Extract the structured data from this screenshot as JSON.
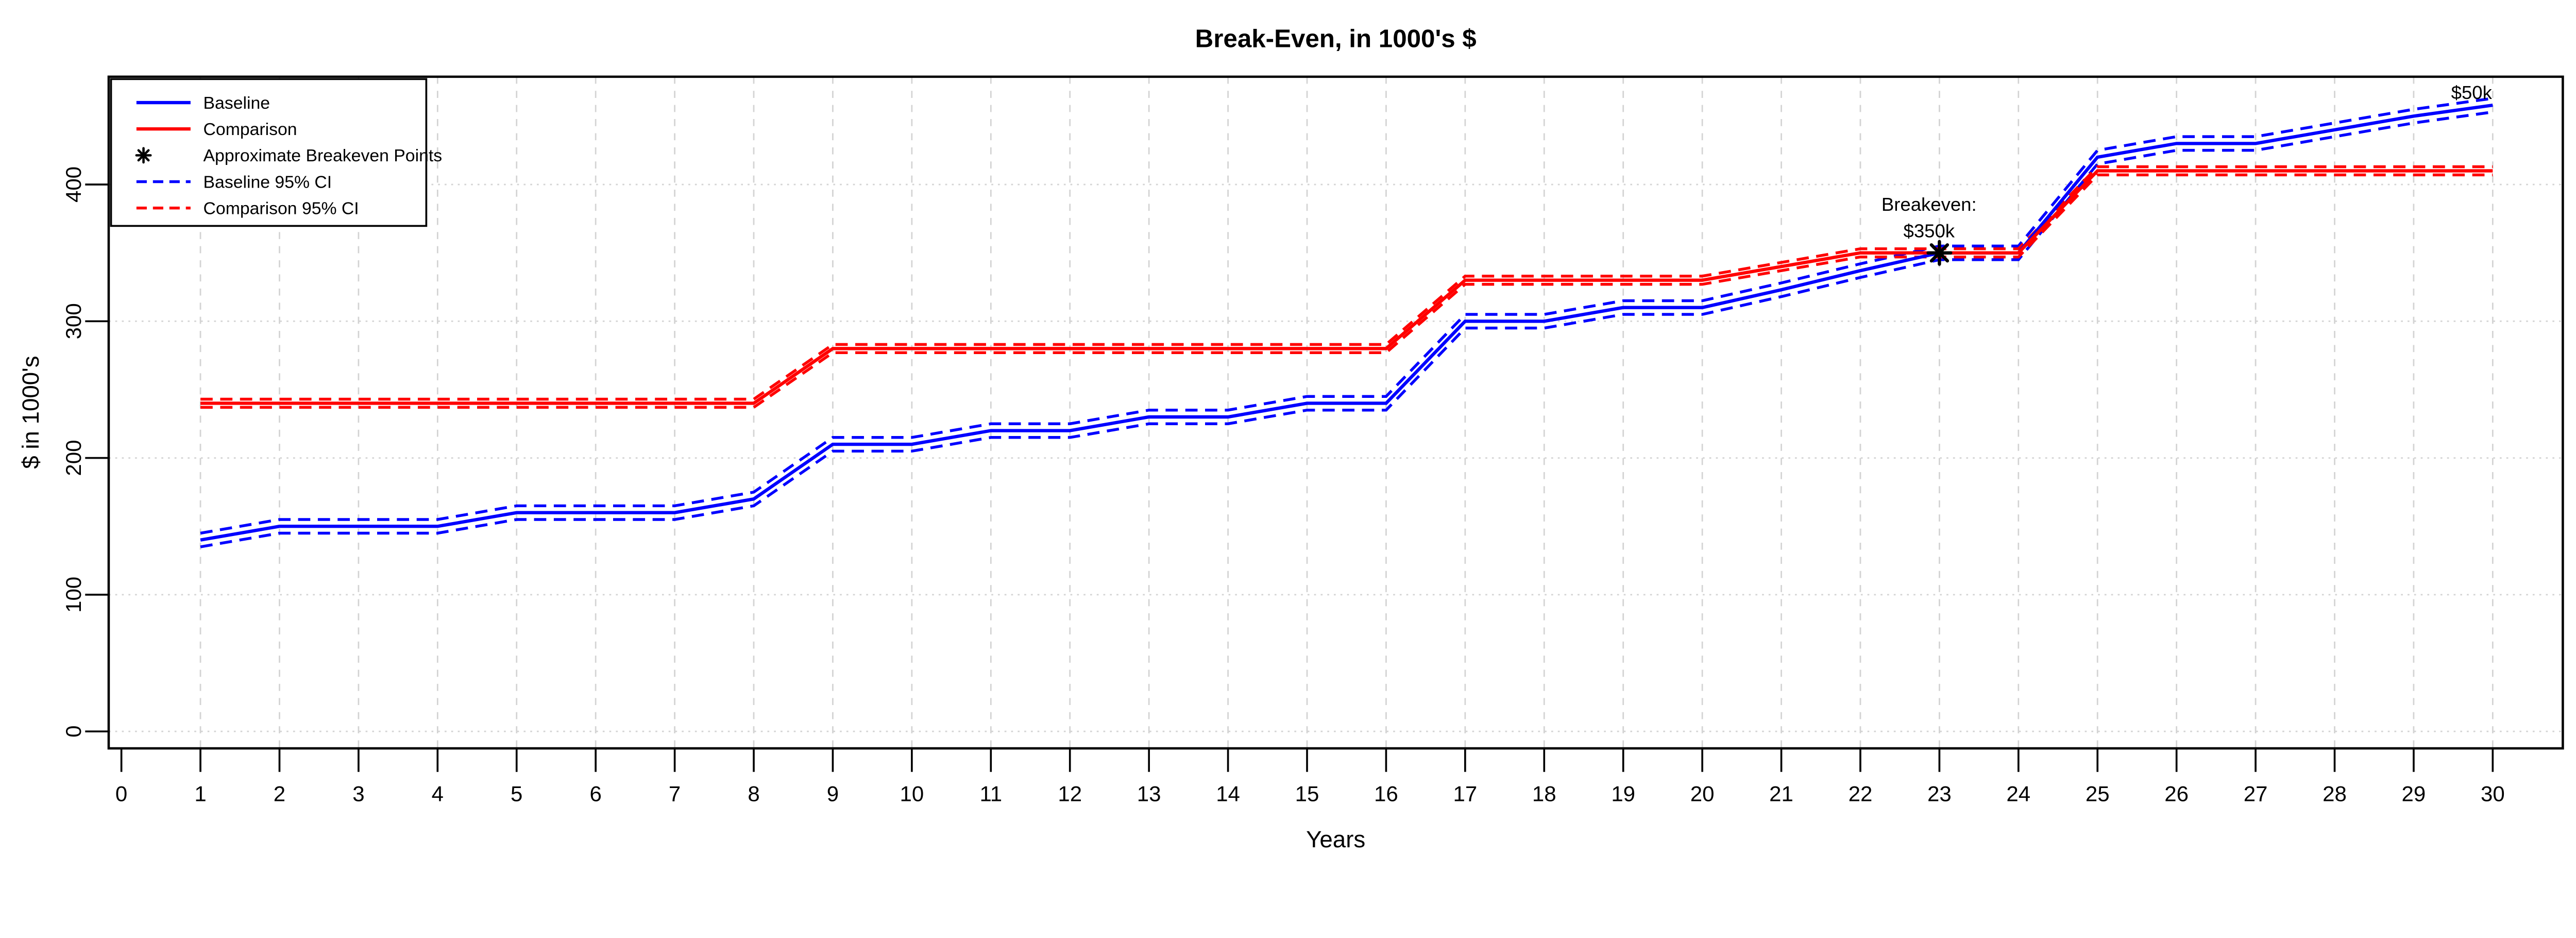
{
  "title": "Break-Even, in 1000's $",
  "colors": {
    "baseline": "#0000FF",
    "comparison": "#FF0000",
    "marker": "#000000",
    "grid": "#D3D3D3",
    "axis": "#000000",
    "background": "#FFFFFF"
  },
  "chart_data": {
    "type": "line",
    "title": "Break-Even, in 1000's $",
    "xlabel": "Years",
    "ylabel": "$ in 1000's",
    "x": [
      1,
      2,
      3,
      4,
      5,
      6,
      7,
      8,
      9,
      10,
      11,
      12,
      13,
      14,
      15,
      16,
      17,
      18,
      19,
      20,
      21,
      22,
      23,
      24,
      25,
      26,
      27,
      28,
      29,
      30
    ],
    "x_ticks": [
      0,
      1,
      2,
      3,
      4,
      5,
      6,
      7,
      8,
      9,
      10,
      11,
      12,
      13,
      14,
      15,
      16,
      17,
      18,
      19,
      20,
      21,
      22,
      23,
      24,
      25,
      26,
      27,
      28,
      29,
      30
    ],
    "y_ticks": [
      0,
      100,
      200,
      300,
      400
    ],
    "xlim": [
      0,
      30
    ],
    "ylim": [
      -12,
      478
    ],
    "grid": true,
    "legend_position": "top-left",
    "series": [
      {
        "name": "Baseline",
        "color": "#0000FF",
        "line": "solid",
        "ci_name": "Baseline 95% CI",
        "ci_half_width": 5,
        "values": [
          140,
          150,
          150,
          150,
          160,
          160,
          160,
          170,
          210,
          210,
          220,
          220,
          230,
          230,
          240,
          240,
          300,
          300,
          310,
          310,
          323,
          337,
          350,
          350,
          420,
          430,
          430,
          440,
          450,
          458
        ]
      },
      {
        "name": "Comparison",
        "color": "#FF0000",
        "line": "solid",
        "ci_name": "Comparison 95% CI",
        "ci_half_width": 3,
        "values": [
          240,
          240,
          240,
          240,
          240,
          240,
          240,
          240,
          280,
          280,
          280,
          280,
          280,
          280,
          280,
          280,
          330,
          330,
          330,
          330,
          340,
          350,
          350,
          350,
          410,
          410,
          410,
          410,
          410,
          410
        ]
      }
    ],
    "markers": [
      {
        "x": 23,
        "y": 350,
        "symbol": "asterisk",
        "color": "#000000"
      }
    ],
    "annotations": [
      {
        "id": "breakeven",
        "lines": [
          "Breakeven:",
          "$350k"
        ],
        "x": 23,
        "y": 390
      },
      {
        "id": "final-gap",
        "lines": [
          "$50k"
        ],
        "x": 29.7,
        "y": 467
      }
    ]
  },
  "legend": {
    "items": [
      {
        "label": "Baseline",
        "color": "#0000FF",
        "sample": "solid-line"
      },
      {
        "label": "Comparison",
        "color": "#FF0000",
        "sample": "solid-line"
      },
      {
        "label": "Approximate Breakeven Points",
        "color": "#000000",
        "sample": "asterisk"
      },
      {
        "label": "Baseline 95% CI",
        "color": "#0000FF",
        "sample": "dashed-line"
      },
      {
        "label": "Comparison 95% CI",
        "color": "#FF0000",
        "sample": "dashed-line"
      }
    ]
  }
}
